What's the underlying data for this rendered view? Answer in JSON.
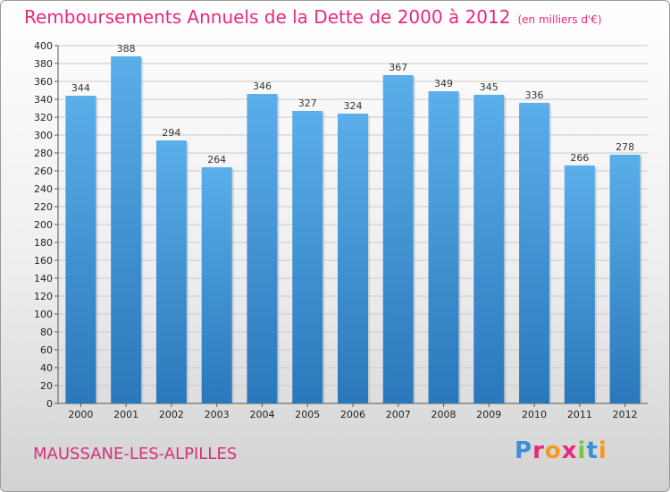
{
  "header": {
    "title": "Remboursements Annuels de la Dette de 2000 à 2012",
    "subtitle": "(en milliers d'€)"
  },
  "footer": {
    "city": "MAUSSANE-LES-ALPILLES",
    "logo": "Proxiti"
  },
  "colors": {
    "title": "#e8297a",
    "bar_light": "#5aaeea",
    "bar_dark": "#2a78bb",
    "logo_letters": [
      "#3a8fd6",
      "#e8297a",
      "#f39a1e",
      "#e8297a",
      "#7cc242",
      "#3a8fd6",
      "#f39a1e"
    ]
  },
  "chart_data": {
    "type": "bar",
    "categories": [
      "2000",
      "2001",
      "2002",
      "2003",
      "2004",
      "2005",
      "2006",
      "2007",
      "2008",
      "2009",
      "2010",
      "2011",
      "2012"
    ],
    "values": [
      344,
      388,
      294,
      264,
      346,
      327,
      324,
      367,
      349,
      345,
      336,
      266,
      278
    ],
    "data_labels": [
      "344",
      "388",
      "294",
      "264",
      "346",
      "327",
      "324",
      "367",
      "349",
      "345",
      "336",
      "266",
      "278"
    ],
    "ylim": [
      0,
      400
    ],
    "yticks": [
      "0",
      "20",
      "40",
      "60",
      "80",
      "100",
      "120",
      "140",
      "160",
      "180",
      "200",
      "220",
      "240",
      "260",
      "280",
      "300",
      "320",
      "340",
      "360",
      "380",
      "400"
    ],
    "grid": true,
    "xlabel": "",
    "ylabel": ""
  }
}
